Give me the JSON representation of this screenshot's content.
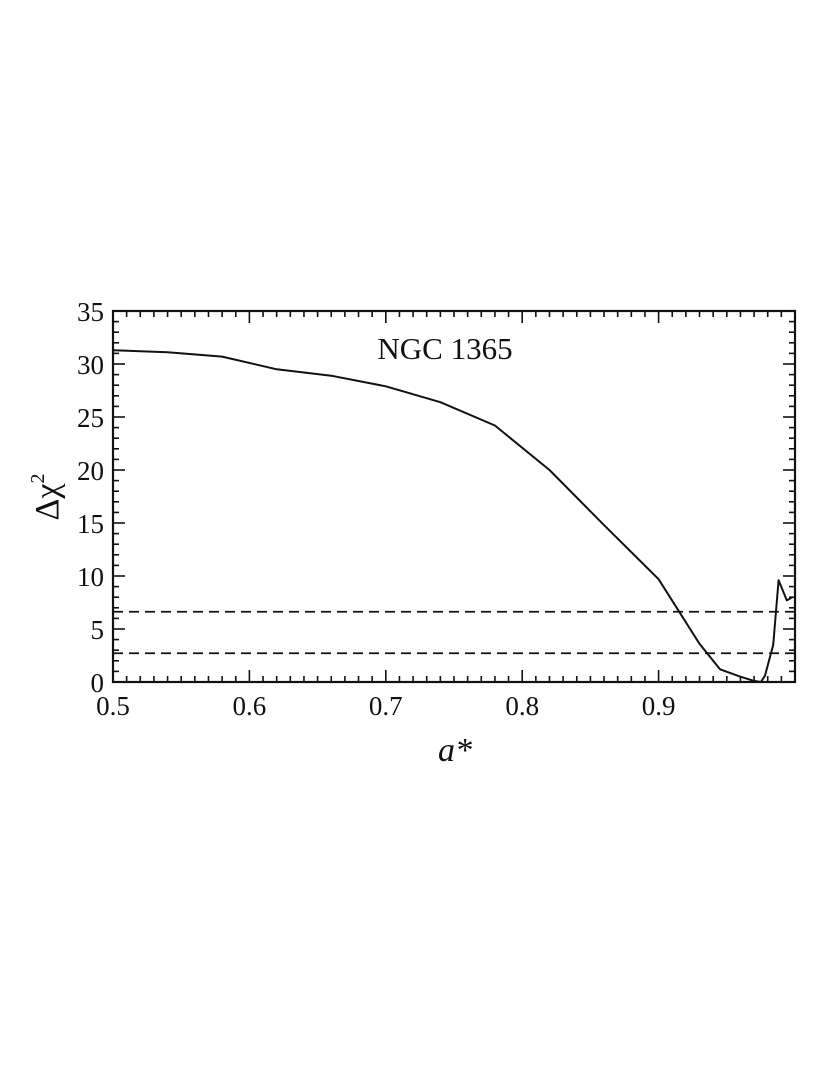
{
  "chart_data": {
    "type": "line",
    "title": "",
    "annotation": "NGC 1365",
    "xlabel": "a*",
    "ylabel": {
      "base": "Δχ",
      "superscript": "2"
    },
    "xlim": [
      0.5,
      1.0
    ],
    "ylim": [
      0,
      35
    ],
    "xticks": [
      "0.5",
      "0.6",
      "0.7",
      "0.8",
      "0.9"
    ],
    "yticks": [
      "0",
      "5",
      "10",
      "15",
      "20",
      "25",
      "30",
      "35"
    ],
    "grid": false,
    "series": [
      {
        "x": [
          0.5,
          0.54,
          0.58,
          0.62,
          0.66,
          0.7,
          0.74,
          0.78,
          0.82,
          0.86,
          0.9,
          0.93,
          0.945,
          0.96,
          0.97,
          0.975,
          0.978,
          0.984,
          0.988,
          0.994,
          0.998
        ],
        "y": [
          31.3,
          31.1,
          30.7,
          29.5,
          28.9,
          27.9,
          26.4,
          24.2,
          20.0,
          14.8,
          9.7,
          3.6,
          1.2,
          0.5,
          0.1,
          0.0,
          0.6,
          3.5,
          9.6,
          7.7,
          8.0
        ]
      }
    ],
    "reference_lines": [
      {
        "y": 6.63
      },
      {
        "y": 2.71
      }
    ]
  }
}
